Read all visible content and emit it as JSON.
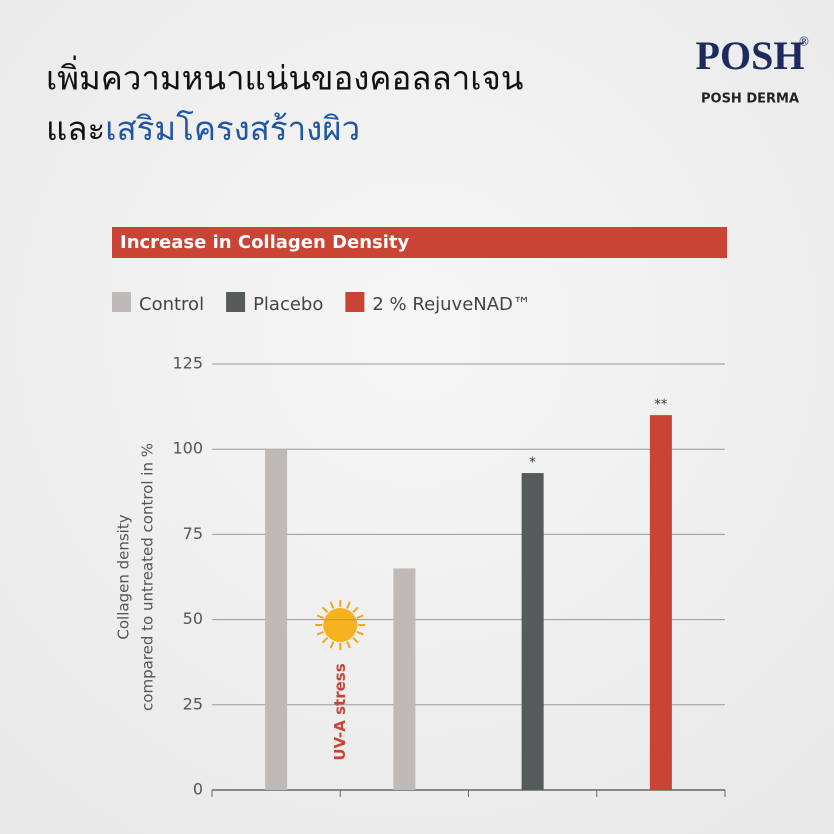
{
  "header": {
    "title_line1": "เพิ่มความหนาแน่นของคอลลาเจน",
    "title_line2_a": "และ",
    "title_line2_b": "เสริมโครงสร้างผิว",
    "logo": "POSH",
    "logo_mark": "®",
    "brand_name": "POSH DERMA"
  },
  "chart_data": {
    "type": "bar",
    "title": "Increase in Collagen Density",
    "y_label_line1": "Collagen density",
    "y_label_line2": "compared to untreated control in %",
    "categories": [
      null,
      null,
      null,
      null
    ],
    "series": [
      {
        "name": "Control",
        "color": "#bdbab7",
        "values": [
          100,
          65,
          null,
          null
        ]
      },
      {
        "name": "Placebo",
        "color": "#555b5a",
        "values": [
          null,
          null,
          93,
          null
        ]
      },
      {
        "name": "2 % RejuveNAD™",
        "color": "#c94434",
        "values": [
          null,
          null,
          null,
          110
        ]
      }
    ],
    "annotations": [
      {
        "text": "UV-A stress"
      },
      {
        "text": "*"
      },
      {
        "text": "**"
      }
    ],
    "ylim": [
      0,
      125
    ],
    "yticks": [
      0,
      25,
      50,
      75,
      100,
      125
    ],
    "grid": true
  }
}
